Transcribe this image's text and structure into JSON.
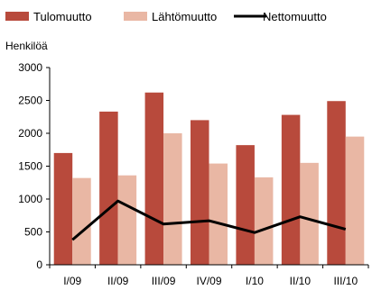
{
  "chart_data": {
    "type": "bar",
    "title": "",
    "ylabel": "Henkilöä",
    "xlabel": "",
    "ylim": [
      0,
      3000
    ],
    "yticks": [
      0,
      500,
      1000,
      1500,
      2000,
      2500,
      3000
    ],
    "categories": [
      "I/09",
      "II/09",
      "III/09",
      "IV/09",
      "I/10",
      "II/10",
      "III/10"
    ],
    "series": [
      {
        "name": "Tulomuutto",
        "kind": "bar",
        "color": "#b84a3c",
        "values": [
          1700,
          2330,
          2620,
          2200,
          1820,
          2280,
          2490
        ]
      },
      {
        "name": "Lähtömuutto",
        "kind": "bar",
        "color": "#e9b7a4",
        "values": [
          1320,
          1360,
          2000,
          1540,
          1330,
          1550,
          1950
        ]
      },
      {
        "name": "Nettomuutto",
        "kind": "line",
        "color": "#000000",
        "values": [
          380,
          970,
          620,
          670,
          490,
          730,
          540
        ]
      }
    ],
    "legend_position": "top",
    "grid": false
  }
}
